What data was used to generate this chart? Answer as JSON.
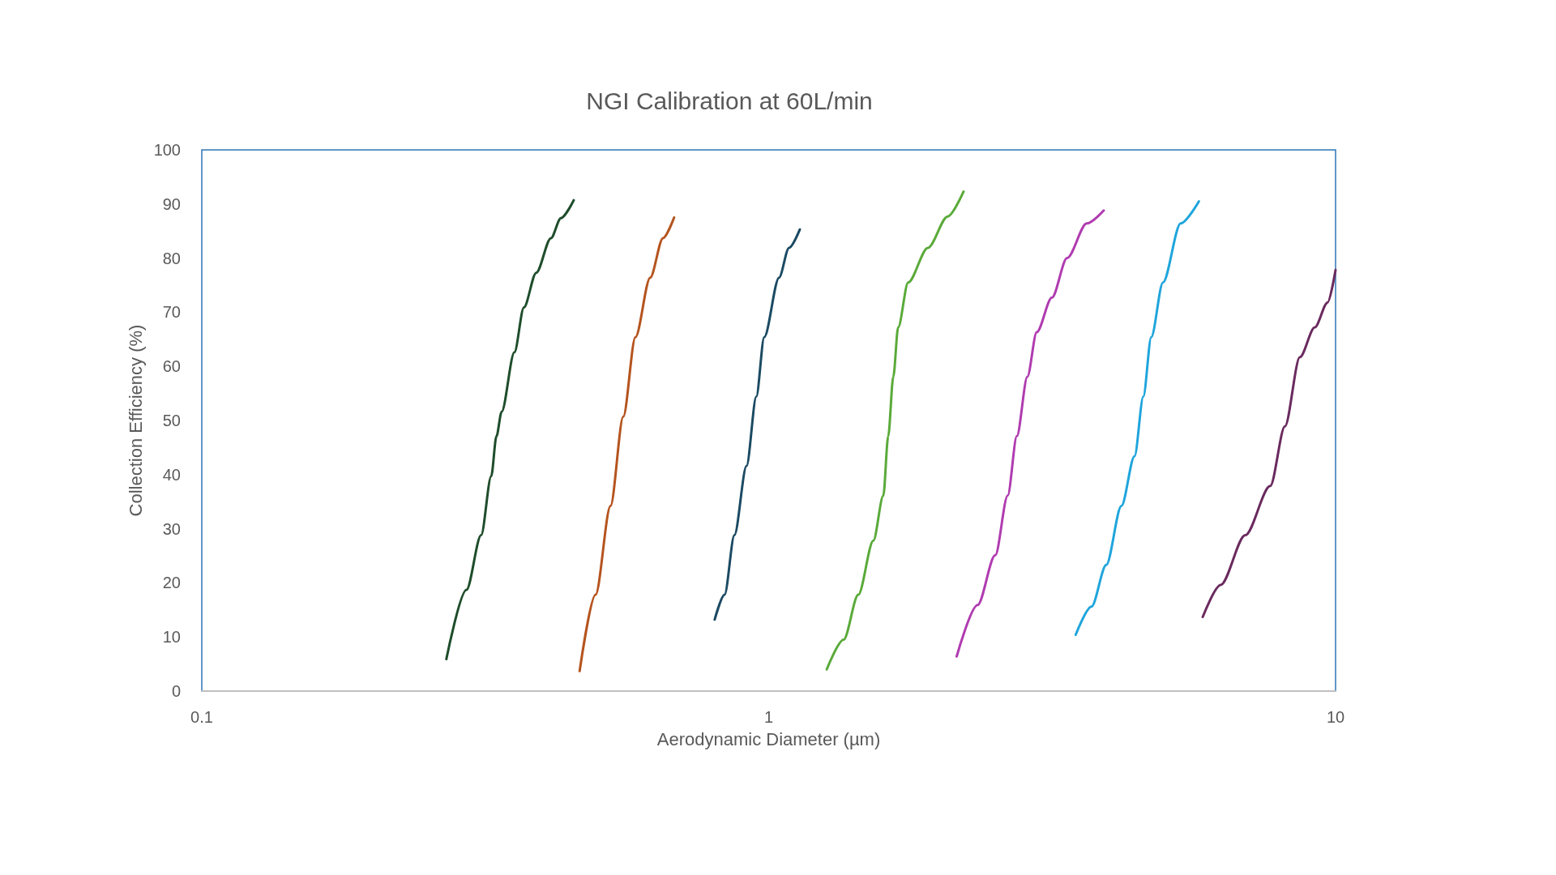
{
  "chart_data": {
    "type": "line",
    "title": "NGI Calibration at 60L/min",
    "xlabel": "Aerodynamic Diameter (µm)",
    "ylabel": "Collection Efficiency (%)",
    "log": "x",
    "xlim": [
      0.1,
      10
    ],
    "xticks": [
      0.1,
      1,
      10
    ],
    "ylim": [
      0,
      100
    ],
    "yticks": [
      0,
      10,
      20,
      30,
      40,
      50,
      60,
      70,
      80,
      90,
      100
    ],
    "marker": "none",
    "line_style": "solid",
    "series": [
      {
        "color": "#1e4d2b",
        "x": [
          0.27,
          0.293,
          0.311,
          0.324,
          0.331,
          0.338,
          0.356,
          0.37,
          0.389,
          0.413,
          0.43,
          0.453
        ],
        "values": [
          5.9,
          18.7,
          28.8,
          39.7,
          47.1,
          51.6,
          62.6,
          70.9,
          77.3,
          83.7,
          87.4,
          90.7
        ]
      },
      {
        "color": "#b5541f",
        "x": [
          0.464,
          0.495,
          0.526,
          0.554,
          0.582,
          0.618,
          0.651,
          0.681
        ],
        "values": [
          3.7,
          17.8,
          34.2,
          50.7,
          65.4,
          76.4,
          83.7,
          87.5
        ]
      },
      {
        "color": "#1b4a63",
        "x": [
          0.803,
          0.836,
          0.87,
          0.914,
          0.951,
          0.982,
          1.043,
          1.086,
          1.135
        ],
        "values": [
          13.2,
          17.8,
          28.8,
          41.6,
          54.4,
          65.4,
          76.4,
          81.9,
          85.3
        ]
      },
      {
        "color": "#5aaa3a",
        "x": [
          1.266,
          1.356,
          1.439,
          1.53,
          1.593,
          1.625,
          1.659,
          1.692,
          1.762,
          1.909,
          2.069,
          2.207
        ],
        "values": [
          4.0,
          9.5,
          17.8,
          27.8,
          36.1,
          47.1,
          58.1,
          67.2,
          75.5,
          81.9,
          87.7,
          92.3
        ]
      },
      {
        "color": "#b03bb0",
        "x": [
          2.146,
          2.336,
          2.51,
          2.64,
          2.74,
          2.86,
          2.97,
          3.16,
          3.36,
          3.64,
          3.9
        ],
        "values": [
          6.4,
          15.9,
          25.1,
          36.1,
          47.1,
          58.1,
          66.3,
          72.7,
          80.0,
          86.4,
          88.8
        ]
      },
      {
        "color": "#1fa5dc",
        "x": [
          3.48,
          3.71,
          3.94,
          4.19,
          4.42,
          4.58,
          4.73,
          4.96,
          5.33,
          5.74
        ],
        "values": [
          10.4,
          15.6,
          23.3,
          34.2,
          43.4,
          54.4,
          65.4,
          75.5,
          86.4,
          90.5
        ]
      },
      {
        "color": "#6a2a5e",
        "x": [
          5.83,
          6.27,
          6.93,
          7.67,
          8.14,
          8.65,
          9.19,
          9.68,
          10.0
        ],
        "values": [
          13.7,
          19.6,
          28.8,
          37.9,
          48.9,
          61.7,
          67.2,
          71.8,
          77.8
        ]
      }
    ]
  }
}
